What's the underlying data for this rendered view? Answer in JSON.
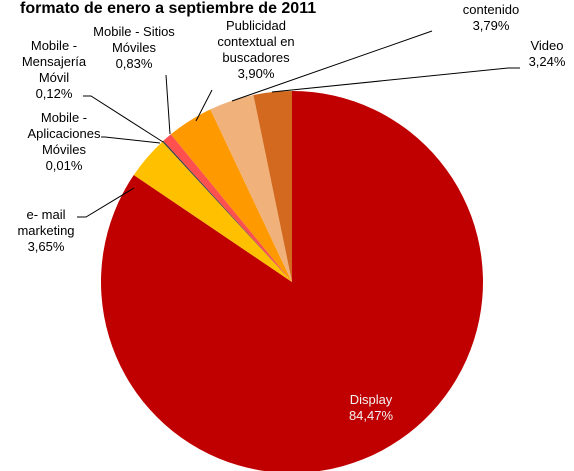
{
  "chart_data": {
    "type": "pie",
    "title": "formato de enero a septiembre de 2011",
    "categories": [
      "Display",
      "e- mail marketing",
      "Mobile - Aplicaciones Móviles",
      "Mobile - Mensajería Móvil",
      "Mobile - Sitios Móviles",
      "Publicidad contextual en buscadores",
      "contenido",
      "Video"
    ],
    "values": [
      84.47,
      3.65,
      0.01,
      0.12,
      0.83,
      3.9,
      3.79,
      3.24
    ],
    "value_labels": [
      "84,47%",
      "3,65%",
      "0,01%",
      "0,12%",
      "0,83%",
      "3,90%",
      "3,79%",
      "3,24%"
    ],
    "label_lines": [
      [
        "Display"
      ],
      [
        "e- mail",
        "marketing"
      ],
      [
        "Mobile -",
        "Aplicaciones",
        "Móviles"
      ],
      [
        "Mobile -",
        "Mensajería",
        "Móvil"
      ],
      [
        "Mobile - Sitios",
        "Móviles"
      ],
      [
        "Publicidad",
        "contextual en",
        "buscadores"
      ],
      [
        "contenido"
      ],
      [
        "Video"
      ]
    ],
    "colors": [
      "#c00000",
      "#ffc000",
      "#70ad47",
      "#3f3f3f",
      "#ff5050",
      "#ff9900",
      "#f0b27a",
      "#d2691e"
    ],
    "legend": "none"
  }
}
